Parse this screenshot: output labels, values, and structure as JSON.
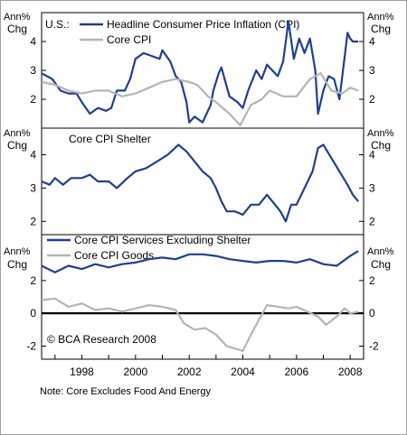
{
  "colors": {
    "navy": "#1f3f8f",
    "grey": "#b4b4b4",
    "axis": "#000000",
    "frame": "#a0a0a0"
  },
  "units": {
    "left_top": "Ann%",
    "left_bottom": "Chg",
    "right_top": "Ann%",
    "right_bottom": "Chg"
  },
  "copyright": "© BCA Research 2008",
  "note": "Note: Core Excludes Food And Energy",
  "x_axis": {
    "ticks": [
      "1998",
      "2000",
      "2002",
      "2004",
      "2006",
      "2008"
    ]
  },
  "chart_data": [
    {
      "type": "line",
      "label_prefix": "U.S.:",
      "ylim": [
        1.0,
        5.0
      ],
      "yticks": [
        2,
        3,
        4
      ],
      "series": [
        {
          "name": "Headline Consumer Price Inflation (CPI)",
          "color": "#1f3f8f",
          "points": [
            [
              1996.5,
              2.9
            ],
            [
              1996.9,
              2.7
            ],
            [
              1997.2,
              2.3
            ],
            [
              1997.5,
              2.2
            ],
            [
              1997.8,
              2.2
            ],
            [
              1998.0,
              1.9
            ],
            [
              1998.3,
              1.5
            ],
            [
              1998.6,
              1.7
            ],
            [
              1998.9,
              1.6
            ],
            [
              1999.1,
              1.7
            ],
            [
              1999.3,
              2.3
            ],
            [
              1999.6,
              2.3
            ],
            [
              1999.8,
              2.7
            ],
            [
              2000.0,
              3.4
            ],
            [
              2000.3,
              3.6
            ],
            [
              2000.6,
              3.5
            ],
            [
              2000.9,
              3.4
            ],
            [
              2001.0,
              3.7
            ],
            [
              2001.3,
              3.3
            ],
            [
              2001.5,
              2.8
            ],
            [
              2001.7,
              2.6
            ],
            [
              2001.9,
              1.9
            ],
            [
              2002.0,
              1.2
            ],
            [
              2002.2,
              1.4
            ],
            [
              2002.5,
              1.2
            ],
            [
              2002.8,
              1.8
            ],
            [
              2002.9,
              2.3
            ],
            [
              2003.1,
              2.9
            ],
            [
              2003.2,
              3.1
            ],
            [
              2003.5,
              2.1
            ],
            [
              2003.8,
              1.9
            ],
            [
              2004.0,
              1.7
            ],
            [
              2004.2,
              2.3
            ],
            [
              2004.5,
              3.0
            ],
            [
              2004.7,
              2.7
            ],
            [
              2004.9,
              3.2
            ],
            [
              2005.1,
              3.0
            ],
            [
              2005.3,
              2.8
            ],
            [
              2005.5,
              3.3
            ],
            [
              2005.7,
              4.7
            ],
            [
              2005.9,
              3.4
            ],
            [
              2006.1,
              4.1
            ],
            [
              2006.3,
              3.6
            ],
            [
              2006.5,
              4.1
            ],
            [
              2006.7,
              3.0
            ],
            [
              2006.8,
              1.5
            ],
            [
              2007.0,
              2.3
            ],
            [
              2007.2,
              2.8
            ],
            [
              2007.4,
              2.7
            ],
            [
              2007.6,
              2.0
            ],
            [
              2007.8,
              3.5
            ],
            [
              2007.9,
              4.3
            ],
            [
              2008.0,
              4.1
            ],
            [
              2008.1,
              4.0
            ],
            [
              2008.3,
              4.0
            ]
          ]
        },
        {
          "name": "Core CPI",
          "color": "#b4b4b4",
          "points": [
            [
              1996.5,
              2.6
            ],
            [
              1997.0,
              2.5
            ],
            [
              1997.5,
              2.3
            ],
            [
              1998.0,
              2.2
            ],
            [
              1998.5,
              2.3
            ],
            [
              1999.0,
              2.3
            ],
            [
              1999.5,
              2.1
            ],
            [
              2000.0,
              2.2
            ],
            [
              2000.5,
              2.4
            ],
            [
              2001.0,
              2.6
            ],
            [
              2001.5,
              2.7
            ],
            [
              2002.0,
              2.6
            ],
            [
              2002.3,
              2.5
            ],
            [
              2002.7,
              2.1
            ],
            [
              2003.0,
              1.9
            ],
            [
              2003.5,
              1.5
            ],
            [
              2003.9,
              1.1
            ],
            [
              2004.3,
              1.8
            ],
            [
              2004.7,
              2.0
            ],
            [
              2005.0,
              2.3
            ],
            [
              2005.5,
              2.1
            ],
            [
              2006.0,
              2.1
            ],
            [
              2006.5,
              2.7
            ],
            [
              2006.9,
              2.9
            ],
            [
              2007.3,
              2.3
            ],
            [
              2007.7,
              2.2
            ],
            [
              2008.0,
              2.4
            ],
            [
              2008.3,
              2.3
            ]
          ]
        }
      ]
    },
    {
      "type": "line",
      "ylim": [
        1.6,
        4.8
      ],
      "yticks": [
        2,
        3,
        4
      ],
      "series": [
        {
          "name": "Core CPI Shelter",
          "color": "#1f3f8f",
          "points": [
            [
              1996.5,
              3.2
            ],
            [
              1996.8,
              3.1
            ],
            [
              1997.0,
              3.3
            ],
            [
              1997.3,
              3.1
            ],
            [
              1997.6,
              3.3
            ],
            [
              1998.0,
              3.3
            ],
            [
              1998.3,
              3.4
            ],
            [
              1998.6,
              3.2
            ],
            [
              1999.0,
              3.2
            ],
            [
              1999.3,
              3.0
            ],
            [
              1999.7,
              3.3
            ],
            [
              2000.0,
              3.5
            ],
            [
              2000.4,
              3.6
            ],
            [
              2000.8,
              3.8
            ],
            [
              2001.2,
              4.0
            ],
            [
              2001.6,
              4.3
            ],
            [
              2001.9,
              4.1
            ],
            [
              2002.2,
              3.8
            ],
            [
              2002.5,
              3.5
            ],
            [
              2002.8,
              3.3
            ],
            [
              2003.0,
              3.0
            ],
            [
              2003.2,
              2.6
            ],
            [
              2003.4,
              2.3
            ],
            [
              2003.7,
              2.3
            ],
            [
              2004.0,
              2.2
            ],
            [
              2004.3,
              2.5
            ],
            [
              2004.6,
              2.5
            ],
            [
              2004.9,
              2.8
            ],
            [
              2005.2,
              2.5
            ],
            [
              2005.4,
              2.3
            ],
            [
              2005.6,
              2.0
            ],
            [
              2005.8,
              2.5
            ],
            [
              2006.0,
              2.5
            ],
            [
              2006.3,
              3.0
            ],
            [
              2006.6,
              3.5
            ],
            [
              2006.8,
              4.2
            ],
            [
              2007.0,
              4.3
            ],
            [
              2007.3,
              3.9
            ],
            [
              2007.6,
              3.5
            ],
            [
              2007.9,
              3.1
            ],
            [
              2008.1,
              2.8
            ],
            [
              2008.3,
              2.6
            ]
          ]
        }
      ]
    },
    {
      "type": "line",
      "ylim": [
        -2.8,
        4.8
      ],
      "yticks": [
        -2,
        0,
        2
      ],
      "zero_line": true,
      "series": [
        {
          "name": "Core CPI Services Excluding Shelter",
          "color": "#1f3f8f",
          "points": [
            [
              1996.5,
              2.9
            ],
            [
              1997.0,
              2.5
            ],
            [
              1997.5,
              2.9
            ],
            [
              1998.0,
              2.7
            ],
            [
              1998.5,
              3.0
            ],
            [
              1999.0,
              2.8
            ],
            [
              1999.5,
              3.0
            ],
            [
              2000.0,
              3.1
            ],
            [
              2000.5,
              3.3
            ],
            [
              2001.0,
              3.4
            ],
            [
              2001.5,
              3.3
            ],
            [
              2002.0,
              3.6
            ],
            [
              2002.5,
              3.6
            ],
            [
              2003.0,
              3.5
            ],
            [
              2003.5,
              3.3
            ],
            [
              2004.0,
              3.2
            ],
            [
              2004.5,
              3.1
            ],
            [
              2005.0,
              3.2
            ],
            [
              2005.5,
              3.2
            ],
            [
              2006.0,
              3.1
            ],
            [
              2006.5,
              3.3
            ],
            [
              2007.0,
              3.0
            ],
            [
              2007.5,
              2.9
            ],
            [
              2008.0,
              3.5
            ],
            [
              2008.3,
              3.8
            ]
          ]
        },
        {
          "name": "Core CPI Goods",
          "color": "#b4b4b4",
          "points": [
            [
              1996.5,
              0.8
            ],
            [
              1997.0,
              0.9
            ],
            [
              1997.5,
              0.4
            ],
            [
              1998.0,
              0.6
            ],
            [
              1998.5,
              0.2
            ],
            [
              1999.0,
              0.3
            ],
            [
              1999.5,
              0.1
            ],
            [
              2000.0,
              0.3
            ],
            [
              2000.5,
              0.5
            ],
            [
              2001.0,
              0.4
            ],
            [
              2001.5,
              0.2
            ],
            [
              2001.8,
              -0.6
            ],
            [
              2002.2,
              -1.0
            ],
            [
              2002.6,
              -0.9
            ],
            [
              2003.0,
              -1.3
            ],
            [
              2003.4,
              -2.0
            ],
            [
              2003.8,
              -2.2
            ],
            [
              2004.0,
              -2.3
            ],
            [
              2004.3,
              -1.3
            ],
            [
              2004.6,
              -0.4
            ],
            [
              2004.9,
              0.5
            ],
            [
              2005.3,
              0.4
            ],
            [
              2005.7,
              0.3
            ],
            [
              2006.0,
              0.4
            ],
            [
              2006.4,
              0.1
            ],
            [
              2006.8,
              -0.2
            ],
            [
              2007.1,
              -0.7
            ],
            [
              2007.5,
              -0.2
            ],
            [
              2007.8,
              0.3
            ],
            [
              2008.0,
              0.0
            ],
            [
              2008.3,
              0.1
            ]
          ]
        }
      ]
    }
  ]
}
